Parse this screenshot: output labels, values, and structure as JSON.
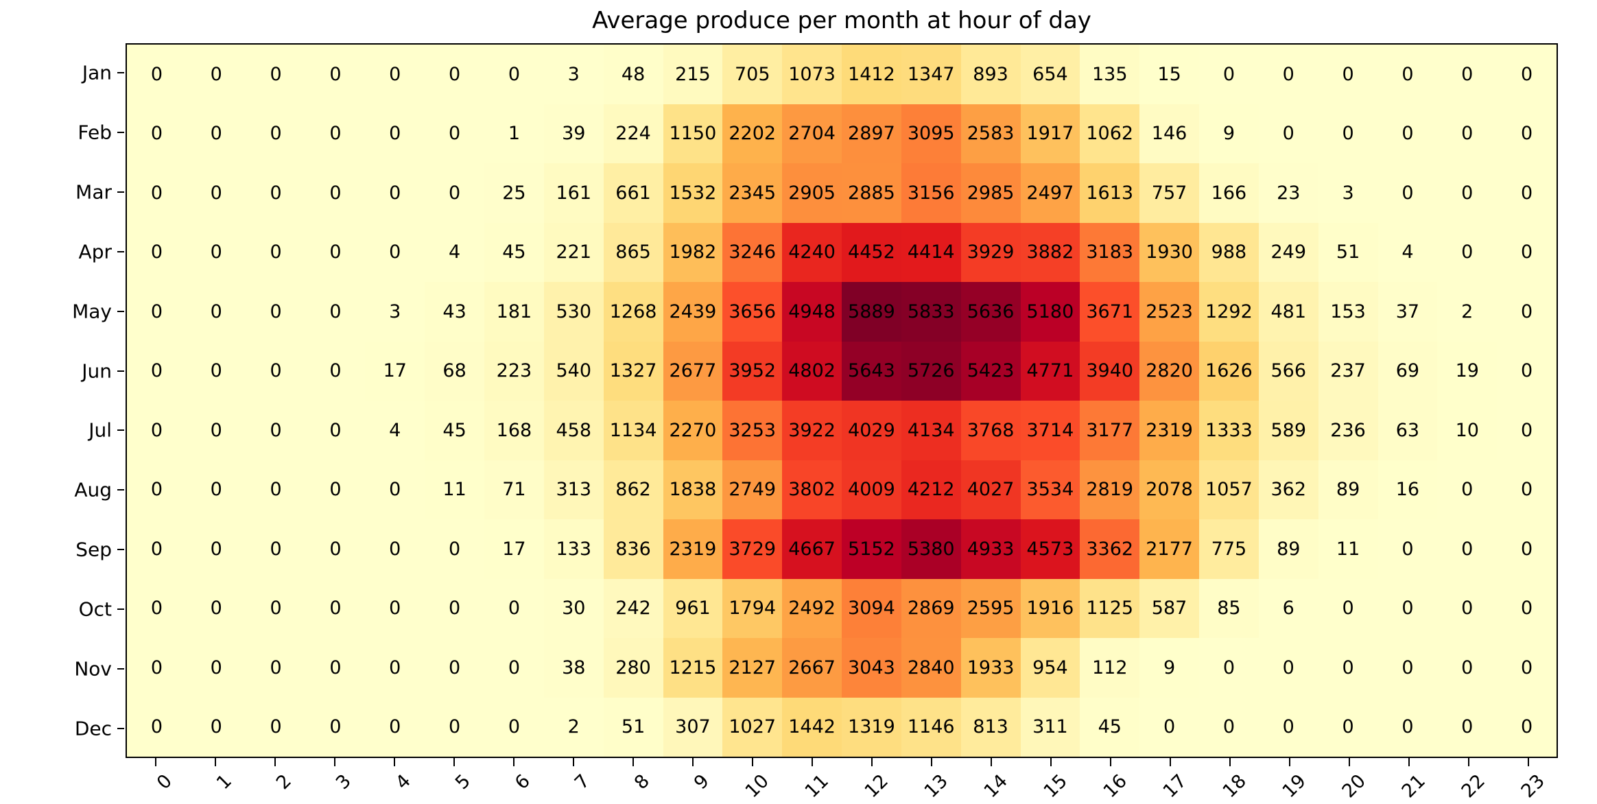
{
  "figure": {
    "title": "Average produce per month at hour of day",
    "background": "#ffffff"
  },
  "chart_data": {
    "type": "heatmap",
    "title": "Average produce per month at hour of day",
    "xlabel": "",
    "ylabel": "",
    "x_tick_labels": [
      "0",
      "1",
      "2",
      "3",
      "4",
      "5",
      "6",
      "7",
      "8",
      "9",
      "10",
      "11",
      "12",
      "13",
      "14",
      "15",
      "16",
      "17",
      "18",
      "19",
      "20",
      "21",
      "22",
      "23"
    ],
    "y_tick_labels": [
      "Jan",
      "Feb",
      "Mar",
      "Apr",
      "May",
      "Jun",
      "Jul",
      "Aug",
      "Sep",
      "Oct",
      "Nov",
      "Dec"
    ],
    "x_tick_rotation_deg": 45,
    "annotations_shown": true,
    "cell_text_color": "#000000",
    "grid": false,
    "legend": "none",
    "vmin": 0,
    "vmax": 5889,
    "colormap": {
      "name": "YlOrRd",
      "anchors": [
        "#ffffcc",
        "#ffeda0",
        "#fed976",
        "#feb24c",
        "#fd8d3c",
        "#fc4e2a",
        "#e31a1c",
        "#bd0026",
        "#800026"
      ]
    },
    "values": [
      [
        0,
        0,
        0,
        0,
        0,
        0,
        0,
        3,
        48,
        215,
        705,
        1073,
        1412,
        1347,
        893,
        654,
        135,
        15,
        0,
        0,
        0,
        0,
        0,
        0
      ],
      [
        0,
        0,
        0,
        0,
        0,
        0,
        1,
        39,
        224,
        1150,
        2202,
        2704,
        2897,
        3095,
        2583,
        1917,
        1062,
        146,
        9,
        0,
        0,
        0,
        0,
        0
      ],
      [
        0,
        0,
        0,
        0,
        0,
        0,
        25,
        161,
        661,
        1532,
        2345,
        2905,
        2885,
        3156,
        2985,
        2497,
        1613,
        757,
        166,
        23,
        3,
        0,
        0,
        0
      ],
      [
        0,
        0,
        0,
        0,
        0,
        4,
        45,
        221,
        865,
        1982,
        3246,
        4240,
        4452,
        4414,
        3929,
        3882,
        3183,
        1930,
        988,
        249,
        51,
        4,
        0,
        0
      ],
      [
        0,
        0,
        0,
        0,
        3,
        43,
        181,
        530,
        1268,
        2439,
        3656,
        4948,
        5889,
        5833,
        5636,
        5180,
        3671,
        2523,
        1292,
        481,
        153,
        37,
        2,
        0
      ],
      [
        0,
        0,
        0,
        0,
        17,
        68,
        223,
        540,
        1327,
        2677,
        3952,
        4802,
        5643,
        5726,
        5423,
        4771,
        3940,
        2820,
        1626,
        566,
        237,
        69,
        19,
        0
      ],
      [
        0,
        0,
        0,
        0,
        4,
        45,
        168,
        458,
        1134,
        2270,
        3253,
        3922,
        4029,
        4134,
        3768,
        3714,
        3177,
        2319,
        1333,
        589,
        236,
        63,
        10,
        0
      ],
      [
        0,
        0,
        0,
        0,
        0,
        11,
        71,
        313,
        862,
        1838,
        2749,
        3802,
        4009,
        4212,
        4027,
        3534,
        2819,
        2078,
        1057,
        362,
        89,
        16,
        0,
        0
      ],
      [
        0,
        0,
        0,
        0,
        0,
        0,
        17,
        133,
        836,
        2319,
        3729,
        4667,
        5152,
        5380,
        4933,
        4573,
        3362,
        2177,
        775,
        89,
        11,
        0,
        0,
        0
      ],
      [
        0,
        0,
        0,
        0,
        0,
        0,
        0,
        30,
        242,
        961,
        1794,
        2492,
        3094,
        2869,
        2595,
        1916,
        1125,
        587,
        85,
        6,
        0,
        0,
        0,
        0
      ],
      [
        0,
        0,
        0,
        0,
        0,
        0,
        0,
        38,
        280,
        1215,
        2127,
        2667,
        3043,
        2840,
        1933,
        954,
        112,
        9,
        0,
        0,
        0,
        0,
        0,
        0
      ],
      [
        0,
        0,
        0,
        0,
        0,
        0,
        0,
        2,
        51,
        307,
        1027,
        1442,
        1319,
        1146,
        813,
        311,
        45,
        0,
        0,
        0,
        0,
        0,
        0,
        0
      ]
    ]
  }
}
